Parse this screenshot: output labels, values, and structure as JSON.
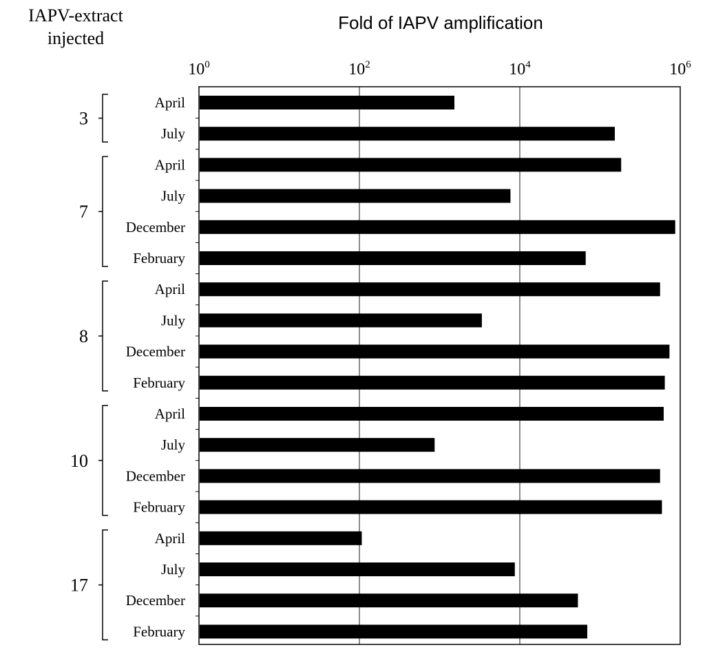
{
  "chart_data": {
    "type": "bar",
    "orientation": "horizontal",
    "title": "Fold of IAPV amplification",
    "group_axis_label_line1": "IAPV-extract",
    "group_axis_label_line2": "injected",
    "scale": "log10",
    "xlim": [
      1,
      1000000
    ],
    "xticks": [
      {
        "value": 1,
        "base": "10",
        "exp": "0"
      },
      {
        "value": 100,
        "base": "10",
        "exp": "2"
      },
      {
        "value": 10000,
        "base": "10",
        "exp": "4"
      },
      {
        "value": 1000000,
        "base": "10",
        "exp": "6"
      }
    ],
    "gridlines": true,
    "bar_color": "#000000",
    "groups": [
      {
        "label": "3",
        "bars": [
          {
            "label": "April",
            "value": 1500
          },
          {
            "label": "July",
            "value": 150000
          }
        ]
      },
      {
        "label": "7",
        "bars": [
          {
            "label": "April",
            "value": 180000
          },
          {
            "label": "July",
            "value": 7500
          },
          {
            "label": "December",
            "value": 850000
          },
          {
            "label": "February",
            "value": 65000
          }
        ]
      },
      {
        "label": "8",
        "bars": [
          {
            "label": "April",
            "value": 550000
          },
          {
            "label": "July",
            "value": 3300
          },
          {
            "label": "December",
            "value": 720000
          },
          {
            "label": "February",
            "value": 630000
          }
        ]
      },
      {
        "label": "10",
        "bars": [
          {
            "label": "April",
            "value": 610000
          },
          {
            "label": "July",
            "value": 850
          },
          {
            "label": "December",
            "value": 550000
          },
          {
            "label": "February",
            "value": 580000
          }
        ]
      },
      {
        "label": "17",
        "bars": [
          {
            "label": "April",
            "value": 105
          },
          {
            "label": "July",
            "value": 8500
          },
          {
            "label": "December",
            "value": 52000
          },
          {
            "label": "February",
            "value": 68000
          }
        ]
      }
    ]
  }
}
